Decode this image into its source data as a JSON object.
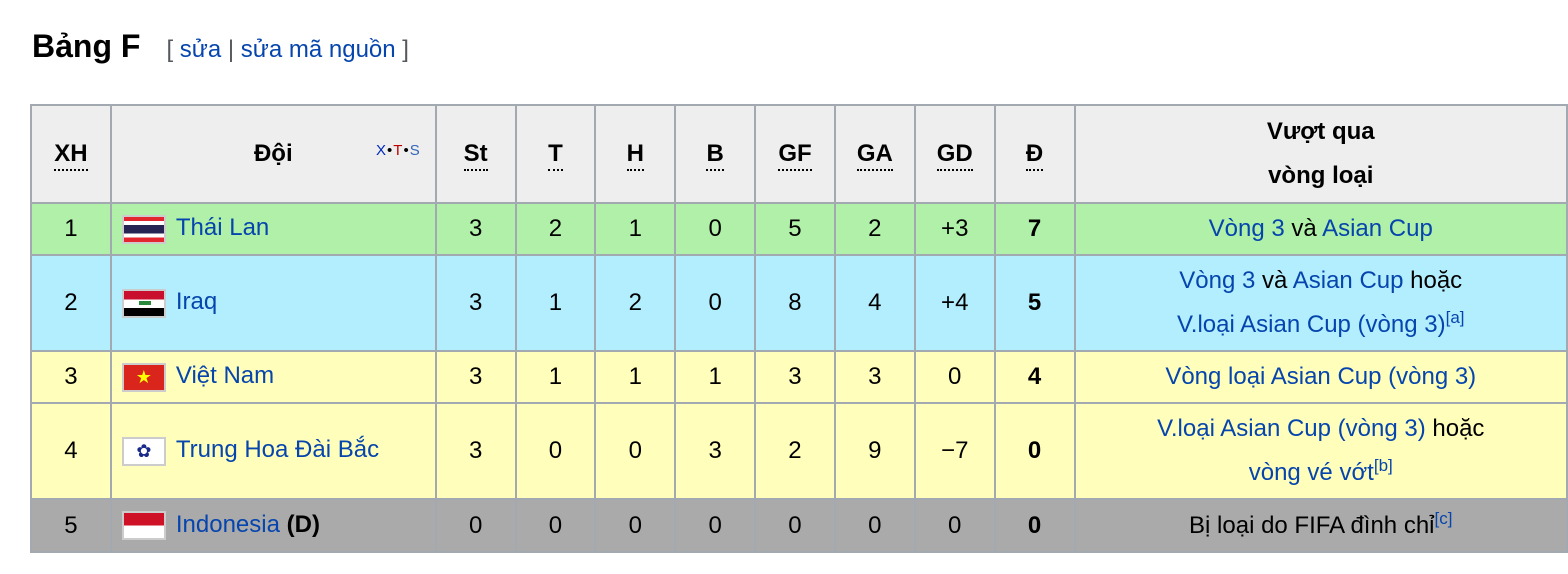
{
  "section": {
    "title": "Bảng F",
    "edit_open": "[",
    "edit_label": "sửa",
    "edit_sep": "|",
    "edit_source_label": "sửa mã nguồn",
    "edit_close": "]"
  },
  "headers": {
    "pos": "XH",
    "team": "Đội",
    "vts": {
      "v": "X",
      "t": "T",
      "s": "S"
    },
    "pld": "St",
    "w": "T",
    "d": "H",
    "l": "B",
    "gf": "GF",
    "ga": "GA",
    "gd": "GD",
    "pts": "Đ",
    "qual_line1": "Vượt qua",
    "qual_line2": "vòng loại"
  },
  "colors": {
    "green": "#b0f0a8",
    "blue": "#b3eeff",
    "yellow": "#ffffbb",
    "gray": "#aaaaaa",
    "link": "#0645ad"
  },
  "rows": [
    {
      "pos": "1",
      "team": "Thái Lan",
      "flag": "thailand-flag",
      "suffix": "",
      "pld": "3",
      "w": "2",
      "d": "1",
      "l": "0",
      "gf": "5",
      "ga": "2",
      "gd": "+3",
      "pts": "7",
      "qual": [
        [
          {
            "t": "Vòng 3",
            "link": true
          },
          {
            "t": " và ",
            "link": false
          },
          {
            "t": "Asian Cup",
            "link": true
          }
        ]
      ]
    },
    {
      "pos": "2",
      "team": "Iraq",
      "flag": "iraq-flag",
      "suffix": "",
      "pld": "3",
      "w": "1",
      "d": "2",
      "l": "0",
      "gf": "8",
      "ga": "4",
      "gd": "+4",
      "pts": "5",
      "qual": [
        [
          {
            "t": "Vòng 3",
            "link": true
          },
          {
            "t": " và ",
            "link": false
          },
          {
            "t": "Asian Cup",
            "link": true
          },
          {
            "t": " hoặc",
            "link": false
          }
        ],
        [
          {
            "t": "V.loại Asian Cup (vòng 3)",
            "link": true
          },
          {
            "t": "[a]",
            "link": true,
            "sup": true
          }
        ]
      ]
    },
    {
      "pos": "3",
      "team": "Việt Nam",
      "flag": "vietnam-flag",
      "suffix": "",
      "pld": "3",
      "w": "1",
      "d": "1",
      "l": "1",
      "gf": "3",
      "ga": "3",
      "gd": "0",
      "pts": "4",
      "qual": [
        [
          {
            "t": "Vòng loại Asian Cup (vòng 3)",
            "link": true
          }
        ]
      ]
    },
    {
      "pos": "4",
      "team": "Trung Hoa Đài Bắc",
      "flag": "chinese-taipei-flag",
      "suffix": "",
      "pld": "3",
      "w": "0",
      "d": "0",
      "l": "3",
      "gf": "2",
      "ga": "9",
      "gd": "−7",
      "pts": "0",
      "qual": [
        [
          {
            "t": "V.loại Asian Cup (vòng 3)",
            "link": true
          },
          {
            "t": " hoặc",
            "link": false
          }
        ],
        [
          {
            "t": "vòng vé vớt",
            "link": true
          },
          {
            "t": "[b]",
            "link": true,
            "sup": true
          }
        ]
      ]
    },
    {
      "pos": "5",
      "team": "Indonesia",
      "flag": "indonesia-flag",
      "suffix": "(D)",
      "pld": "0",
      "w": "0",
      "d": "0",
      "l": "0",
      "gf": "0",
      "ga": "0",
      "gd": "0",
      "pts": "0",
      "qual": [
        [
          {
            "t": "Bị loại do FIFA đình chỉ",
            "link": false
          },
          {
            "t": "[c]",
            "link": true,
            "sup": true
          }
        ]
      ]
    }
  ]
}
